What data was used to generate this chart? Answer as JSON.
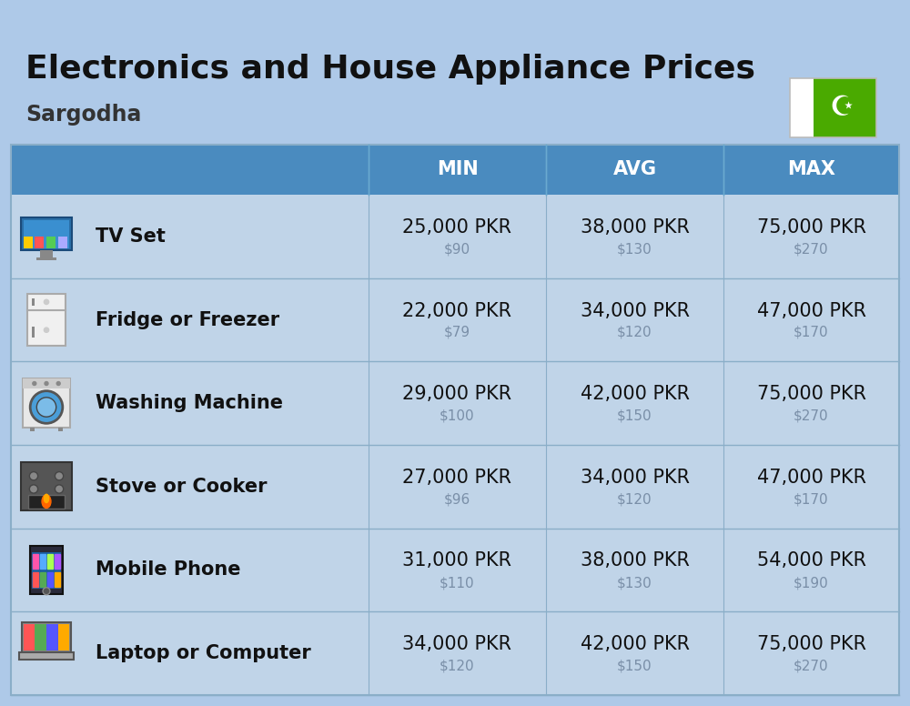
{
  "title": "Electronics and House Appliance Prices",
  "subtitle": "Sargodha",
  "background_color": "#aec9e8",
  "header_color": "#4a8bbf",
  "header_text_color": "#ffffff",
  "row_bg_color": "#c0d4e8",
  "divider_color": "#8aaec8",
  "columns": [
    "MIN",
    "AVG",
    "MAX"
  ],
  "items": [
    {
      "name": "TV Set",
      "min_pkr": "25,000 PKR",
      "min_usd": "$90",
      "avg_pkr": "38,000 PKR",
      "avg_usd": "$130",
      "max_pkr": "75,000 PKR",
      "max_usd": "$270"
    },
    {
      "name": "Fridge or Freezer",
      "min_pkr": "22,000 PKR",
      "min_usd": "$79",
      "avg_pkr": "34,000 PKR",
      "avg_usd": "$120",
      "max_pkr": "47,000 PKR",
      "max_usd": "$170"
    },
    {
      "name": "Washing Machine",
      "min_pkr": "29,000 PKR",
      "min_usd": "$100",
      "avg_pkr": "42,000 PKR",
      "avg_usd": "$150",
      "max_pkr": "75,000 PKR",
      "max_usd": "$270"
    },
    {
      "name": "Stove or Cooker",
      "min_pkr": "27,000 PKR",
      "min_usd": "$96",
      "avg_pkr": "34,000 PKR",
      "avg_usd": "$120",
      "max_pkr": "47,000 PKR",
      "max_usd": "$170"
    },
    {
      "name": "Mobile Phone",
      "min_pkr": "31,000 PKR",
      "min_usd": "$110",
      "avg_pkr": "38,000 PKR",
      "avg_usd": "$130",
      "max_pkr": "54,000 PKR",
      "max_usd": "$190"
    },
    {
      "name": "Laptop or Computer",
      "min_pkr": "34,000 PKR",
      "min_usd": "$120",
      "avg_pkr": "42,000 PKR",
      "avg_usd": "$150",
      "max_pkr": "75,000 PKR",
      "max_usd": "$270"
    }
  ],
  "flag_green": "#4aaa00",
  "pkr_fontsize": 15,
  "usd_fontsize": 11,
  "name_fontsize": 15,
  "header_fontsize": 15,
  "title_fontsize": 26,
  "subtitle_fontsize": 17
}
